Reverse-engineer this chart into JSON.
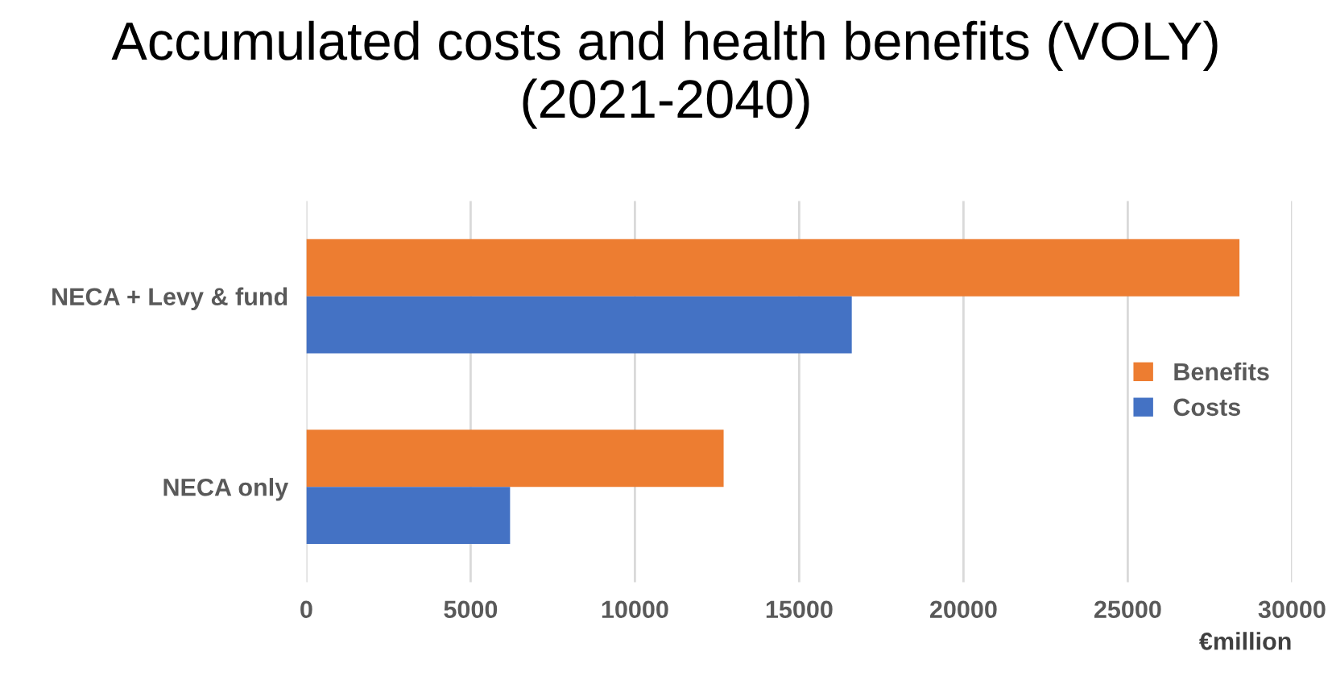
{
  "chart_data": {
    "type": "bar",
    "orientation": "horizontal",
    "title": "Accumulated costs and health benefits (VOLY)\n(2021-2040)",
    "xlabel": "€million",
    "categories": [
      "NECA + Levy & fund",
      "NECA only"
    ],
    "series": [
      {
        "name": "Benefits",
        "color": "#ed7d31",
        "values": [
          28400,
          12700
        ]
      },
      {
        "name": "Costs",
        "color": "#4472c4",
        "values": [
          16600,
          6200
        ]
      }
    ],
    "xlim": [
      0,
      30000
    ],
    "xticks": [
      0,
      5000,
      10000,
      15000,
      20000,
      25000,
      30000
    ],
    "grid": "x",
    "legend": "right"
  }
}
